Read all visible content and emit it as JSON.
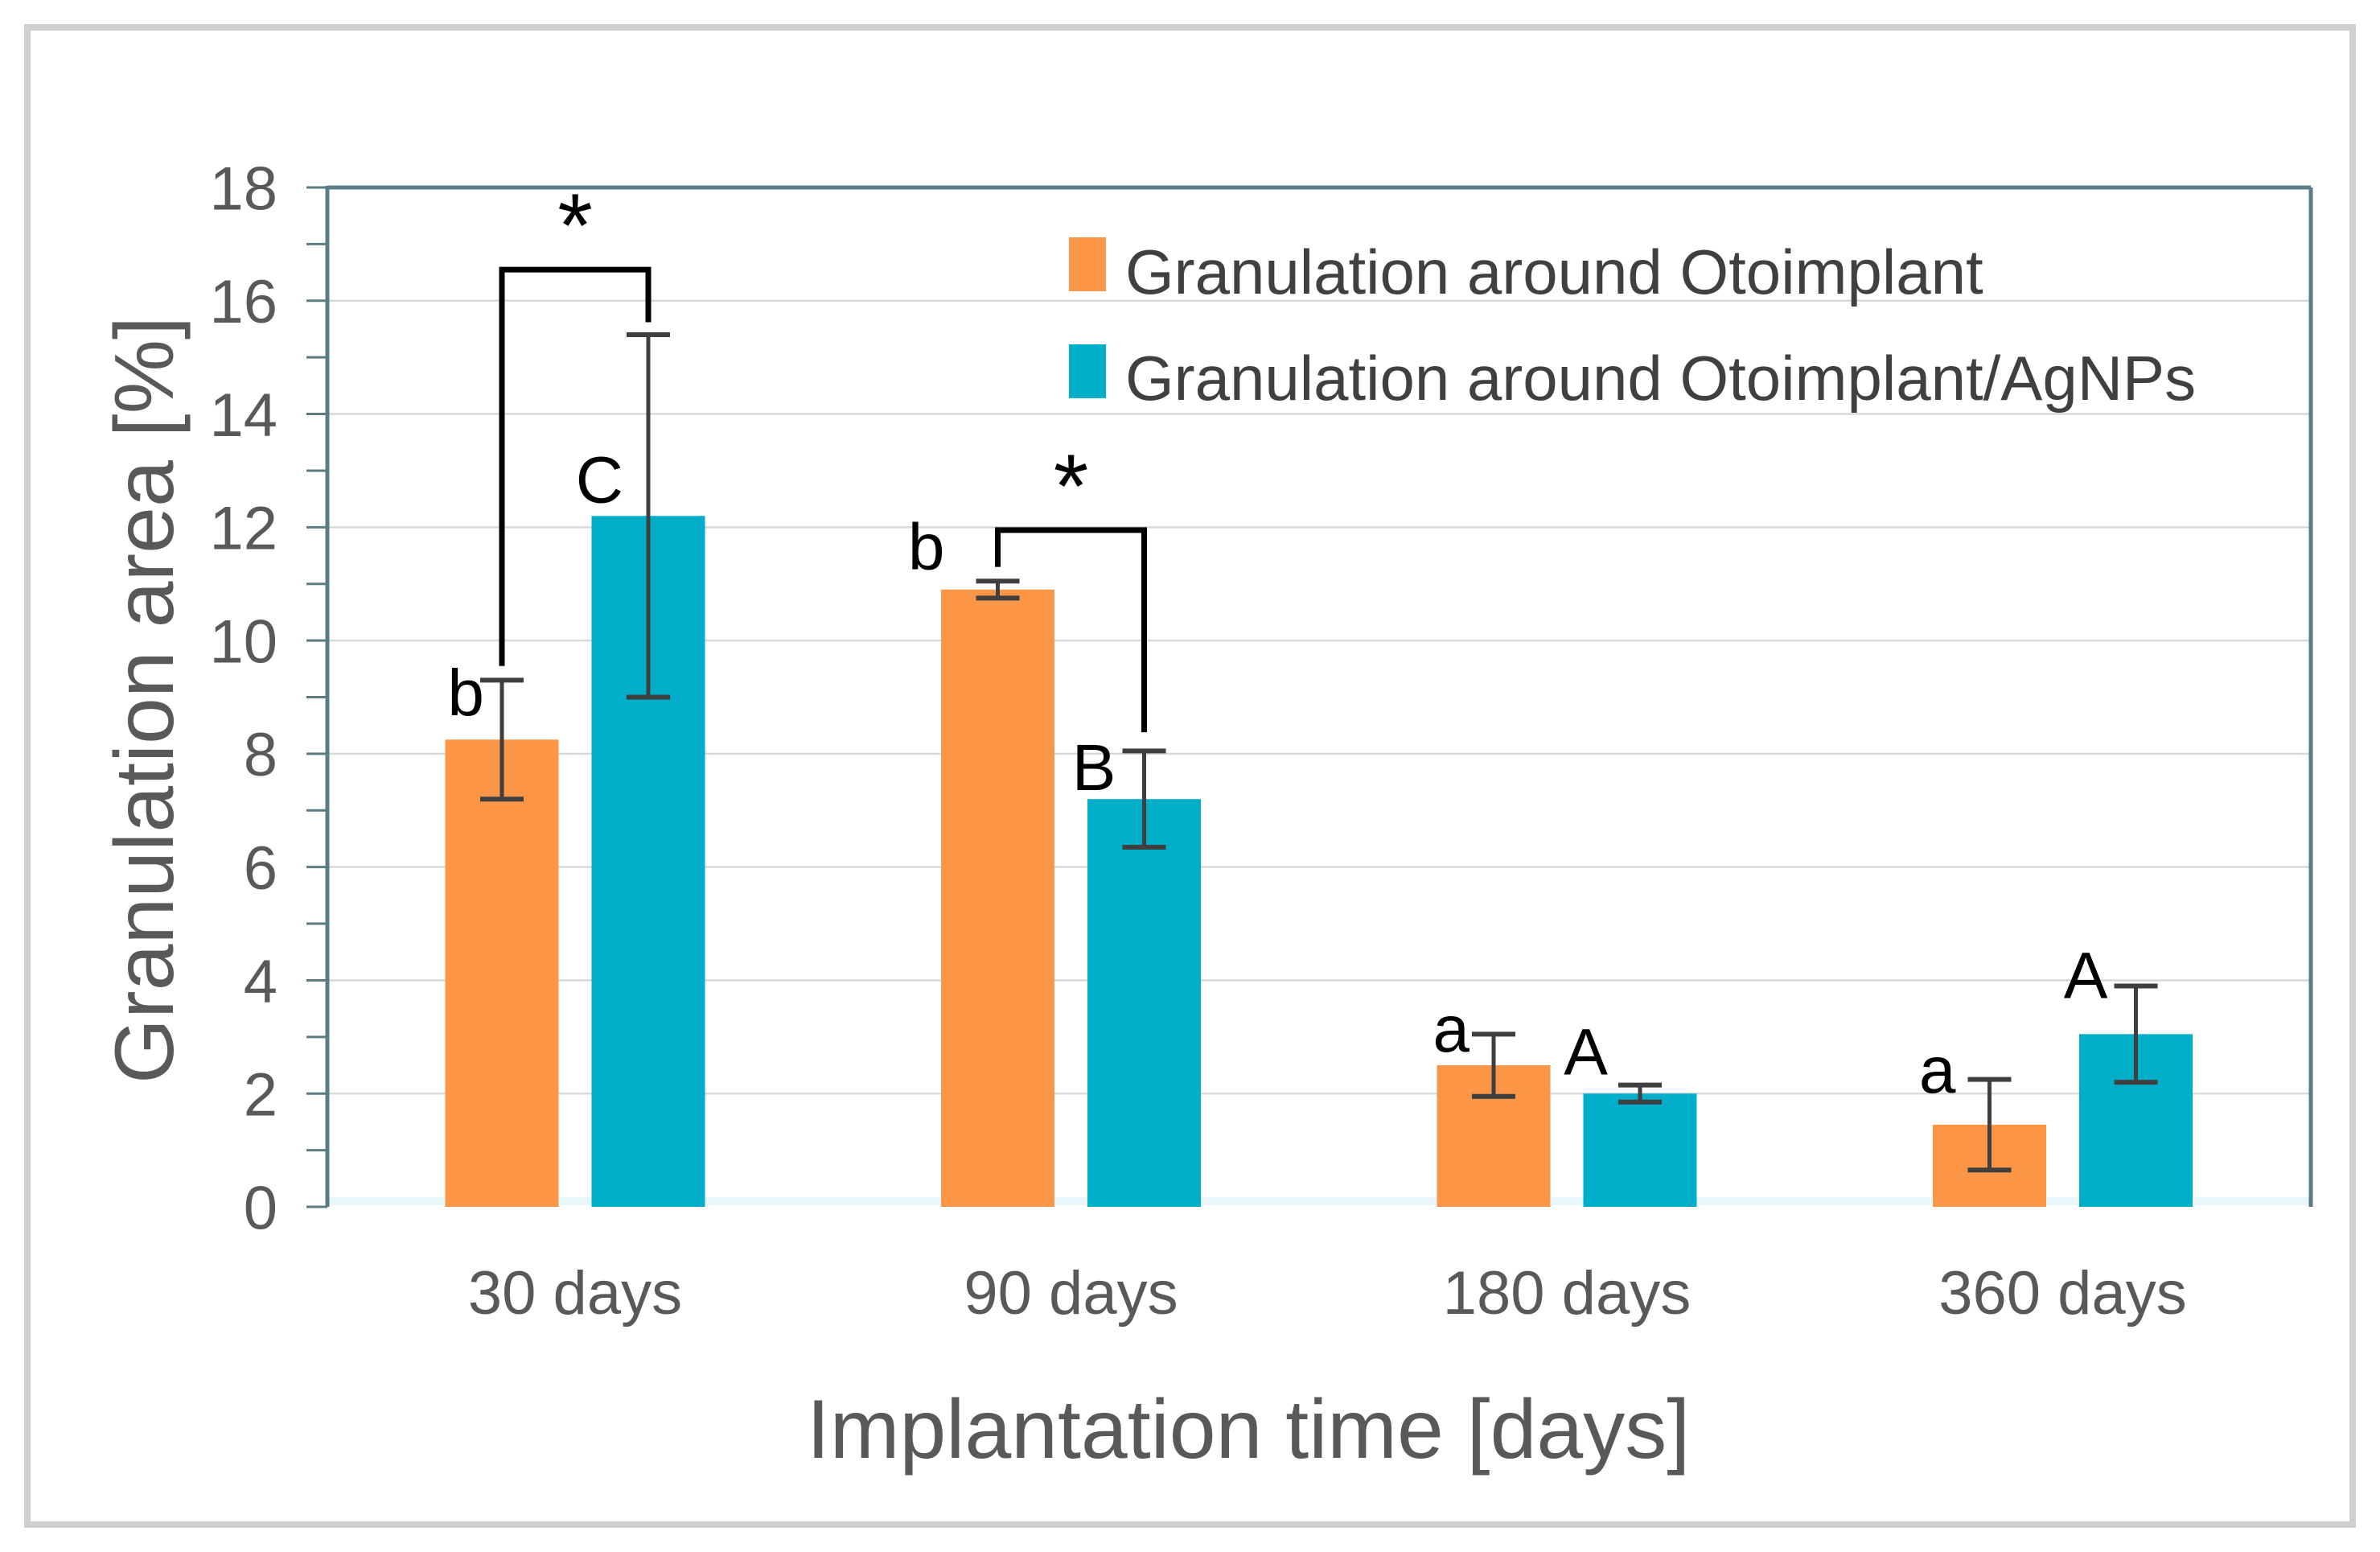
{
  "figure": {
    "border_color": "#cfcfcf",
    "background": "#ffffff"
  },
  "chart_data": {
    "type": "bar",
    "title": "",
    "xlabel": "Implantation time [days]",
    "ylabel": "Granulation area [%]",
    "categories": [
      "30 days",
      "90 days",
      "180 days",
      "360 days"
    ],
    "series": [
      {
        "name": "Granulation around Otoimplant",
        "color": "#FA9646",
        "values": [
          8.25,
          10.9,
          2.5,
          1.45
        ],
        "errors": [
          1.05,
          0.15,
          0.55,
          0.8
        ],
        "letters": [
          "b",
          "b",
          "a",
          "a"
        ]
      },
      {
        "name": "Granulation around Otoimplant/AgNPs",
        "color": "#00AEC9",
        "values": [
          12.2,
          7.2,
          2.0,
          3.05
        ],
        "errors": [
          3.2,
          0.85,
          0.15,
          0.85
        ],
        "letters": [
          "C",
          "B",
          "A",
          "A"
        ]
      }
    ],
    "ylim": [
      0,
      18
    ],
    "ytick_step": 2,
    "y_tick_labels": [
      "0",
      "2",
      "4",
      "6",
      "8",
      "10",
      "12",
      "14",
      "16",
      "18"
    ],
    "grid": true,
    "legend_position": "top-right",
    "significance": [
      {
        "category": "30 days",
        "label": "*",
        "bracket_top": 16.55,
        "left_drop_to": 9.55,
        "right_drop_to": 15.62
      },
      {
        "category": "90 days",
        "label": "*",
        "bracket_top": 11.95,
        "left_drop_to": 11.3,
        "right_drop_to": 8.38
      }
    ]
  },
  "colors": {
    "gridline": "#d9d9d9",
    "plot_border": "#5b7b85",
    "x_axis_line": "#7f8c8d",
    "x_axis_glow": "#e9f6fa",
    "error_bar": "#3f3f3f",
    "tick_label": "#595959",
    "axis_title": "#595959",
    "legend_text": "#404040",
    "annotation": "#000000"
  }
}
